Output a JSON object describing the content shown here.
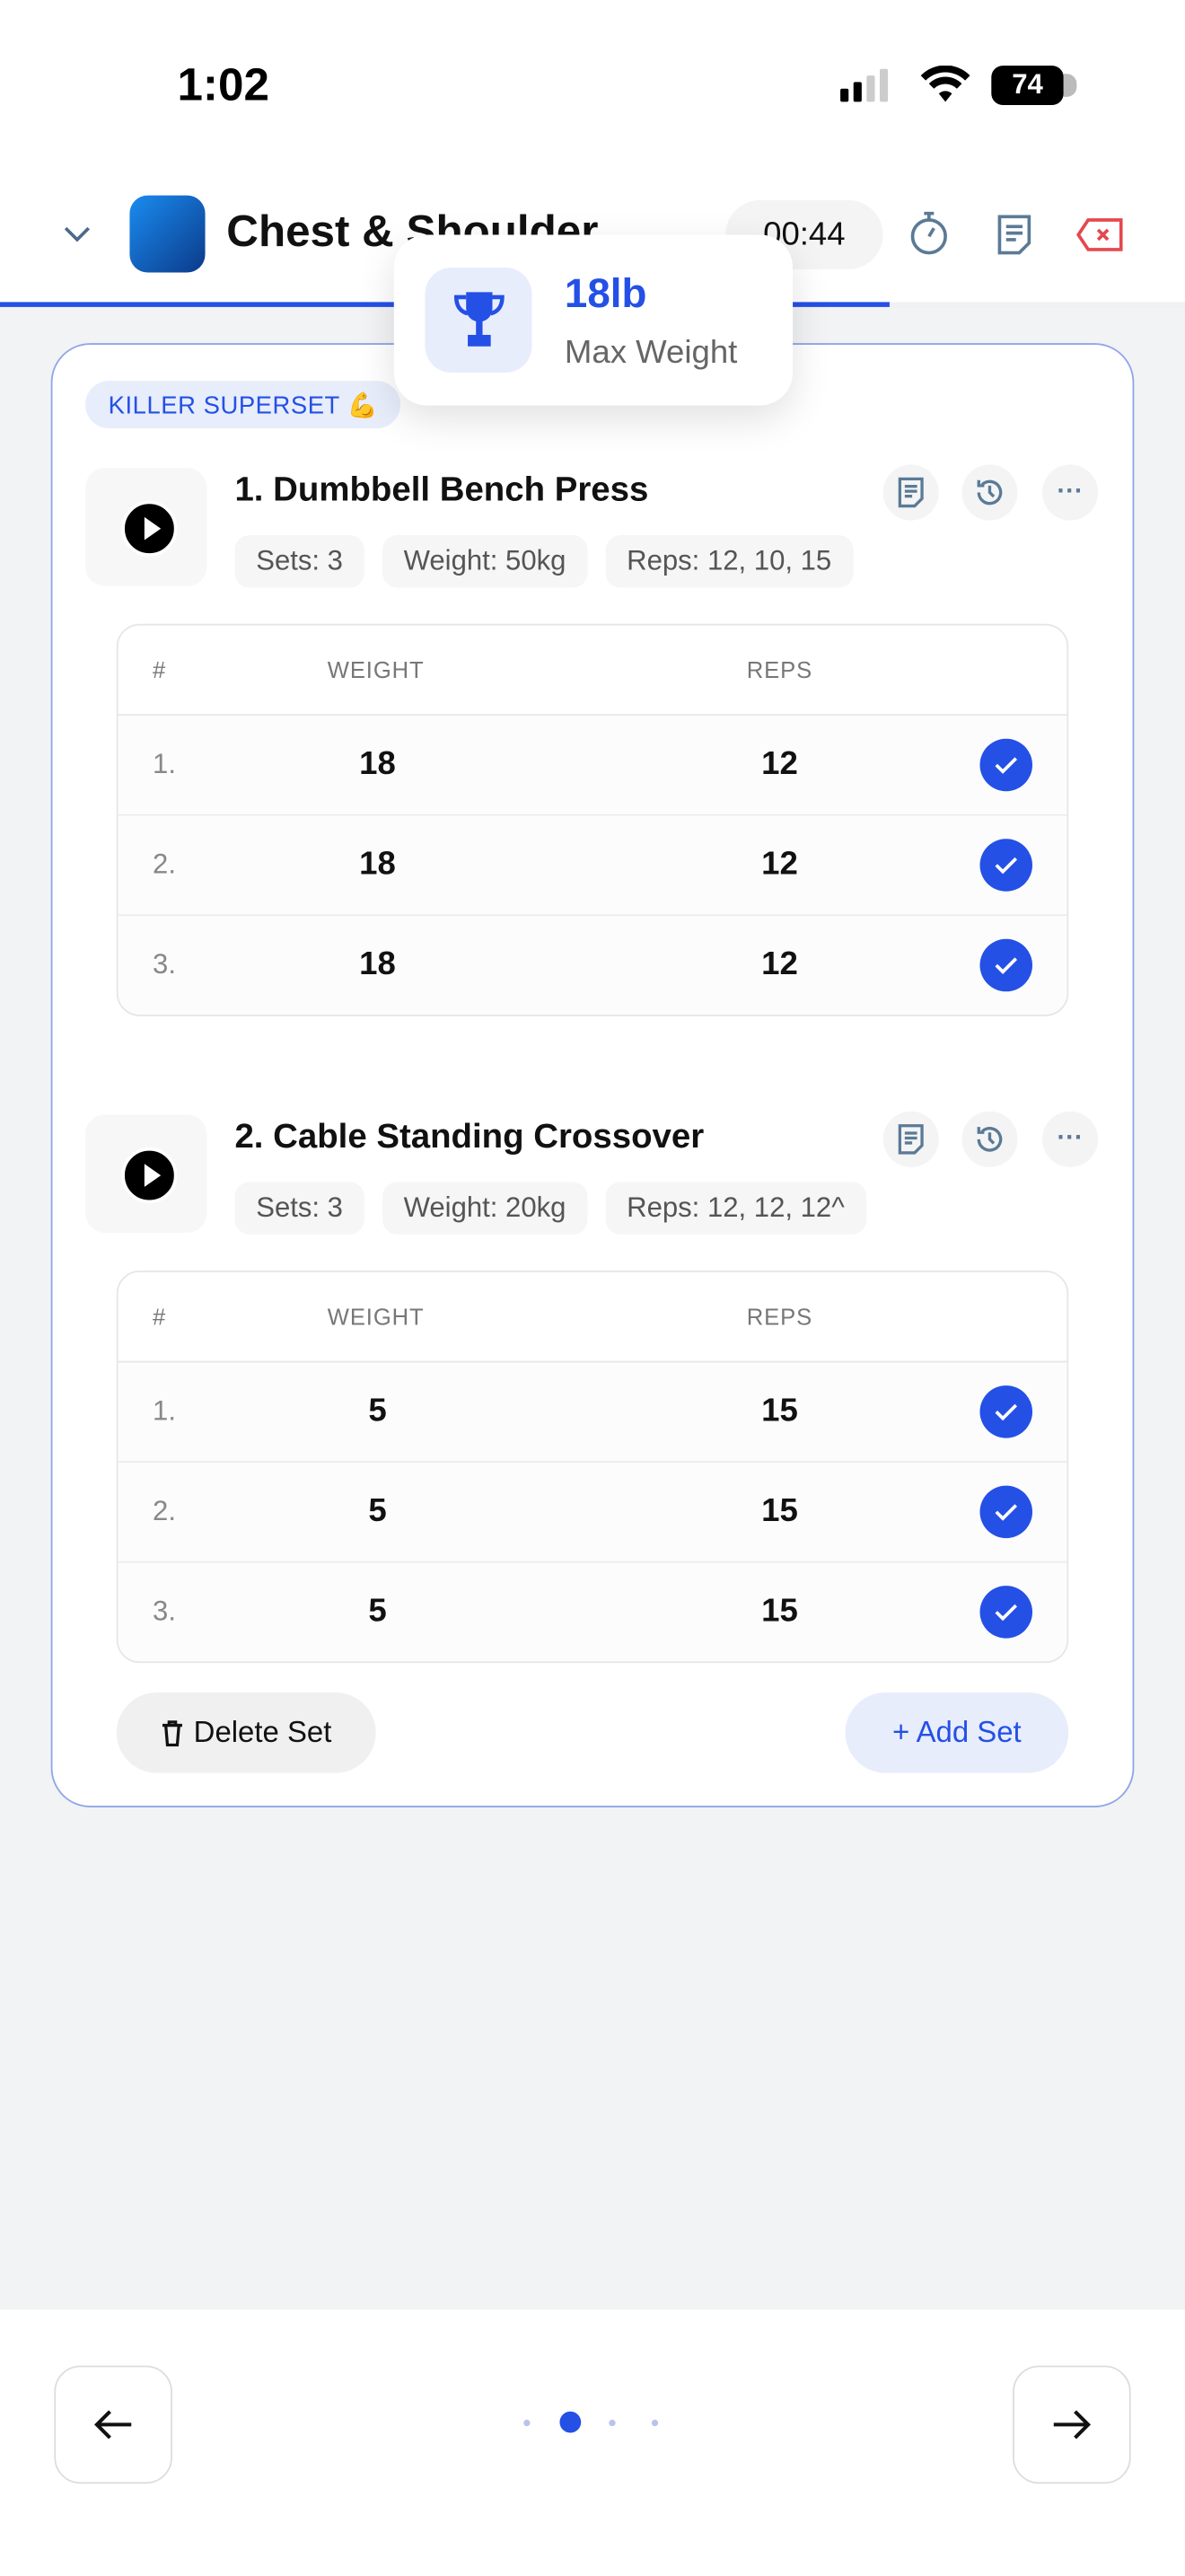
{
  "status_bar": {
    "time": "1:02",
    "battery": "74"
  },
  "header": {
    "title": "Chest & Shoulder",
    "timer": "00:44",
    "progress_percent": 75,
    "icons": [
      "chevron-down-icon",
      "stopwatch-icon",
      "notes-icon",
      "delete-icon"
    ]
  },
  "popup": {
    "value": "18lb",
    "label": "Max Weight",
    "icon": "trophy-icon"
  },
  "superset": {
    "badge": "KILLER SUPERSET 💪"
  },
  "table_headers": {
    "num": "#",
    "weight": "WEIGHT",
    "reps": "REPS"
  },
  "exercises": [
    {
      "title": "1. Dumbbell Bench Press",
      "chips": [
        "Sets: 3",
        "Weight: 50kg",
        "Reps: 12, 10, 15"
      ],
      "sets": [
        {
          "n": "1.",
          "weight": "18",
          "reps": "12",
          "done": true
        },
        {
          "n": "2.",
          "weight": "18",
          "reps": "12",
          "done": true
        },
        {
          "n": "3.",
          "weight": "18",
          "reps": "12",
          "done": true
        }
      ]
    },
    {
      "title": "2. Cable Standing Crossover",
      "chips": [
        "Sets: 3",
        "Weight: 20kg",
        "Reps: 12, 12, 12^"
      ],
      "sets": [
        {
          "n": "1.",
          "weight": "5",
          "reps": "15",
          "done": true
        },
        {
          "n": "2.",
          "weight": "5",
          "reps": "15",
          "done": true
        },
        {
          "n": "3.",
          "weight": "5",
          "reps": "15",
          "done": true
        }
      ]
    }
  ],
  "actions": {
    "delete_set": "Delete Set",
    "add_set": "+ Add Set"
  },
  "pager": {
    "pages": 4,
    "current": 2
  },
  "colors": {
    "accent": "#2450e6",
    "danger": "#e5484d",
    "card_border": "#8fa6e8"
  }
}
